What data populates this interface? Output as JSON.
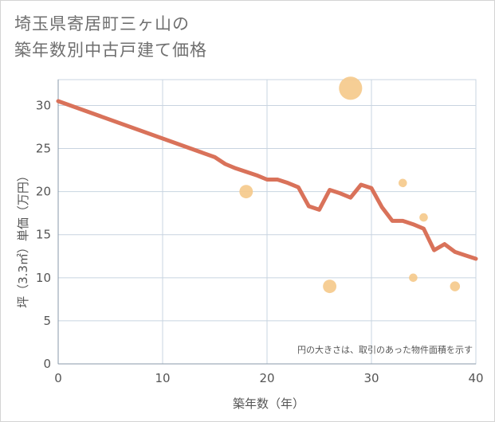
{
  "chart_data": {
    "type": "line",
    "title_lines": [
      "埼玉県寄居町三ヶ山の",
      "築年数別中古戸建て価格"
    ],
    "xlabel": "築年数（年）",
    "ylabel": "坪（3.3㎡）単価（万円）",
    "note": "円の大きさは、取引のあった物件面積を示す",
    "xlim": [
      0,
      40
    ],
    "ylim": [
      0,
      33
    ],
    "x_ticks": [
      0,
      10,
      20,
      30,
      40
    ],
    "y_ticks": [
      0,
      5,
      10,
      15,
      20,
      25,
      30
    ],
    "grid": true,
    "colors": {
      "line": "#d9725a",
      "bubble": "#f5c98a",
      "grid": "#c8d4e0"
    },
    "series": [
      {
        "kind": "line",
        "x": [
          0,
          15,
          16,
          17,
          18,
          19,
          20,
          21,
          22,
          23,
          24,
          25,
          26,
          27,
          28,
          29,
          30,
          31,
          32,
          33,
          34,
          35,
          36,
          37,
          38,
          39,
          40
        ],
        "y": [
          30.5,
          24.0,
          23.2,
          22.7,
          22.3,
          21.9,
          21.4,
          21.4,
          21.0,
          20.5,
          18.3,
          17.9,
          20.2,
          19.8,
          19.3,
          20.8,
          20.4,
          18.2,
          16.6,
          16.6,
          16.2,
          15.7,
          13.2,
          13.9,
          13.0,
          12.6,
          12.2
        ]
      },
      {
        "kind": "bubble",
        "points": [
          {
            "x": 18,
            "y": 20.0,
            "size": 3
          },
          {
            "x": 26,
            "y": 9.0,
            "size": 3
          },
          {
            "x": 28,
            "y": 32.0,
            "size": 10
          },
          {
            "x": 33,
            "y": 21.0,
            "size": 1
          },
          {
            "x": 34,
            "y": 10.0,
            "size": 1
          },
          {
            "x": 35,
            "y": 17.0,
            "size": 1
          },
          {
            "x": 38,
            "y": 9.0,
            "size": 1.5
          }
        ]
      }
    ]
  }
}
